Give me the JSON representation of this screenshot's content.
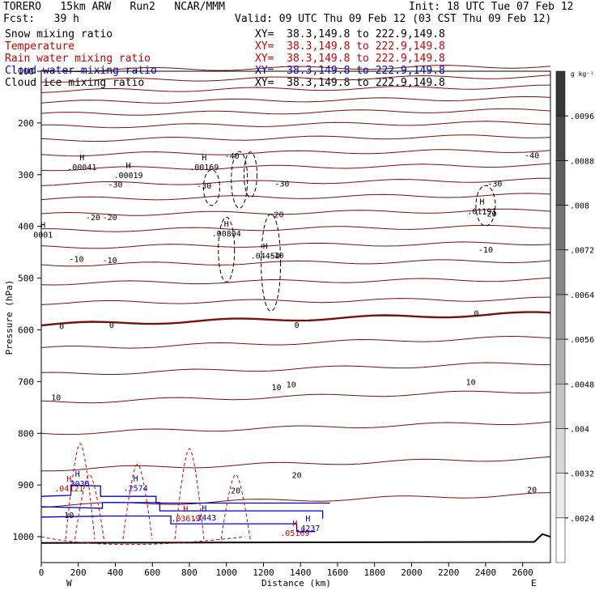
{
  "header": {
    "model": "TORERO   15km ARW   Run2   NCAR/MMM",
    "init": "Init: 18 UTC Tue 07 Feb 12",
    "fcst": "Fcst:   39 h",
    "valid": "Valid: 09 UTC Thu 09 Feb 12 (03 CST Thu 09 Feb 12)"
  },
  "fields": [
    {
      "name": "Snow mixing ratio",
      "xy": "XY=  38.3,149.8 to 222.9,149.8",
      "color": "#000000"
    },
    {
      "name": "Temperature",
      "xy": "XY=  38.3,149.8 to 222.9,149.8",
      "color": "#cc0000"
    },
    {
      "name": "Rain water mixing ratio",
      "xy": "XY=  38.3,149.8 to 222.9,149.8",
      "color": "#cc0000"
    },
    {
      "name": "Cloud water mixing ratio",
      "xy": "XY=  38.3,149.8 to 222.9,149.8",
      "color": "#0000cc"
    },
    {
      "name": "Cloud ice mixing ratio",
      "xy": "XY=  38.3,149.8 to 222.9,149.8",
      "color": "#000000"
    }
  ],
  "colorbar": {
    "unit": "g kg⁻¹",
    "ticks": [
      ".0024",
      ".0032",
      ".004",
      ".0048",
      ".0056",
      ".0064",
      ".0072",
      ".008",
      ".0088",
      ".0096"
    ]
  },
  "chart_data": {
    "type": "line",
    "xlabel": "Distance (km)",
    "ylabel": "Pressure (hPa)",
    "xlim": [
      0,
      2750
    ],
    "ylim": [
      1050,
      100
    ],
    "x_ticks": [
      "0",
      "200",
      "400",
      "600",
      "800",
      "1000",
      "1200",
      "1400",
      "1600",
      "1800",
      "2000",
      "2200",
      "2400",
      "2600"
    ],
    "y_ticks": [
      "100",
      "200",
      "300",
      "400",
      "500",
      "600",
      "700",
      "800",
      "900",
      "1000"
    ],
    "left_end": "W",
    "right_end": "E",
    "temperature_labels": [
      {
        "text": "-40",
        "x": 1030,
        "p": 263
      },
      {
        "text": "-40",
        "x": 2650,
        "p": 262
      },
      {
        "text": "-30",
        "x": 400,
        "p": 318
      },
      {
        "text": "-30",
        "x": 880,
        "p": 321
      },
      {
        "text": "-30",
        "x": 1300,
        "p": 317
      },
      {
        "text": "-30",
        "x": 2450,
        "p": 317
      },
      {
        "text": "-20",
        "x": 280,
        "p": 382
      },
      {
        "text": "-20",
        "x": 370,
        "p": 382
      },
      {
        "text": "-20",
        "x": 1270,
        "p": 376
      },
      {
        "text": "-20",
        "x": 2420,
        "p": 375
      },
      {
        "text": "-10",
        "x": 190,
        "p": 462
      },
      {
        "text": "-10",
        "x": 370,
        "p": 465
      },
      {
        "text": "-10",
        "x": 1270,
        "p": 455
      },
      {
        "text": "-10",
        "x": 2400,
        "p": 444
      },
      {
        "text": "0",
        "x": 110,
        "p": 592
      },
      {
        "text": "0",
        "x": 380,
        "p": 590
      },
      {
        "text": "0",
        "x": 1380,
        "p": 590
      },
      {
        "text": "0",
        "x": 2350,
        "p": 567
      },
      {
        "text": "10",
        "x": 80,
        "p": 730
      },
      {
        "text": "10",
        "x": 1270,
        "p": 710
      },
      {
        "text": "10",
        "x": 1350,
        "p": 705
      },
      {
        "text": "10",
        "x": 2320,
        "p": 700
      },
      {
        "text": "10",
        "x": 150,
        "p": 958
      },
      {
        "text": "20",
        "x": 1380,
        "p": 880
      },
      {
        "text": "20",
        "x": 1050,
        "p": 910
      },
      {
        "text": "20",
        "x": 2650,
        "p": 908
      }
    ],
    "maxima_labels": [
      {
        "text": ".00041",
        "x": 220,
        "p": 285,
        "color": "#000000"
      },
      {
        "text": ".00019",
        "x": 470,
        "p": 300,
        "color": "#000000"
      },
      {
        "text": ".00169",
        "x": 880,
        "p": 285,
        "color": "#000000"
      },
      {
        "text": ".01191",
        "x": 2380,
        "p": 370,
        "color": "#000000"
      },
      {
        "text": ".00804",
        "x": 1000,
        "p": 413,
        "color": "#000000"
      },
      {
        "text": "0001",
        "x": 10,
        "p": 415,
        "color": "#000000"
      },
      {
        "text": ".04454",
        "x": 1210,
        "p": 456,
        "color": "#000000"
      },
      {
        "text": ".3036",
        "x": 195,
        "p": 897,
        "color": "#0000cc"
      },
      {
        "text": ".04121",
        "x": 150,
        "p": 906,
        "color": "#cc0000"
      },
      {
        "text": ".2574",
        "x": 510,
        "p": 905,
        "color": "#0000cc"
      },
      {
        "text": ".03619",
        "x": 780,
        "p": 964,
        "color": "#cc0000"
      },
      {
        "text": ".3443",
        "x": 880,
        "p": 962,
        "color": "#0000cc"
      },
      {
        "text": ".05169",
        "x": 1370,
        "p": 992,
        "color": "#cc0000"
      },
      {
        "text": ".4237",
        "x": 1440,
        "p": 983,
        "color": "#0000cc"
      }
    ]
  }
}
